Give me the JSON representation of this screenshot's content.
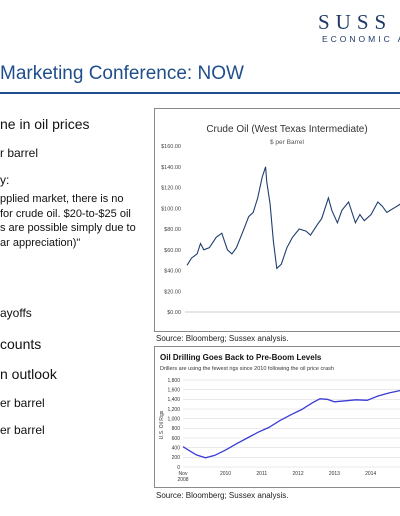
{
  "header": {
    "logo_main": "SUSS",
    "logo_sub": "ECONOMIC A",
    "title": "Marketing Conference: NOW"
  },
  "bullets": {
    "b1": "ne in oil prices",
    "b2": "r barrel",
    "b3": "y:",
    "quote": "pplied market, there is no\nfor crude oil. $20-to-$25 oil\ns are possible simply due to\nar appreciation)\"",
    "b4": "ayoffs",
    "b5": "counts",
    "b6": "n outlook",
    "b7": "er barrel",
    "b8": "er barrel"
  },
  "source1": "Source: Bloomberg; Sussex analysis.",
  "source2": "Source: Bloomberg; Sussex analysis.",
  "chart_data": [
    {
      "type": "line",
      "title": "Crude Oil (West Texas Intermediate)",
      "subtitle": "$ per Barrel",
      "ylim": [
        0,
        160
      ],
      "yticks": [
        "$0.00",
        "$20.00",
        "$40.00",
        "$60.00",
        "$80.00",
        "$100.00",
        "$120.00",
        "$140.00",
        "$160.00"
      ],
      "xlim": [
        2005.0,
        2014.8
      ],
      "grid": false,
      "color": "#1f3f6e",
      "x": [
        2005.0,
        2005.2,
        2005.45,
        2005.6,
        2005.75,
        2006.0,
        2006.3,
        2006.55,
        2006.8,
        2007.0,
        2007.2,
        2007.5,
        2007.75,
        2007.95,
        2008.15,
        2008.35,
        2008.5,
        2008.55,
        2008.7,
        2008.85,
        2009.0,
        2009.2,
        2009.45,
        2009.7,
        2010.0,
        2010.3,
        2010.5,
        2010.8,
        2011.0,
        2011.3,
        2011.45,
        2011.7,
        2011.9,
        2012.2,
        2012.5,
        2012.7,
        2012.9,
        2013.2,
        2013.5,
        2013.7,
        2013.9,
        2014.2,
        2014.5,
        2014.8
      ],
      "y": [
        45,
        52,
        56,
        66,
        60,
        62,
        72,
        76,
        60,
        56,
        62,
        78,
        92,
        96,
        110,
        130,
        140,
        126,
        104,
        68,
        42,
        46,
        62,
        72,
        80,
        78,
        74,
        84,
        90,
        110,
        98,
        86,
        98,
        106,
        86,
        94,
        88,
        94,
        106,
        102,
        96,
        100,
        104,
        98
      ]
    },
    {
      "type": "line",
      "title": "Oil Drilling Goes Back to Pre-Boom Levels",
      "subtitle": "Drillers are using the fewest rigs since 2010 following the oil price crash",
      "ylabel": "U.S. Oil Rigs",
      "ylim": [
        0,
        1800
      ],
      "yticks": [
        "0",
        "200",
        "400",
        "600",
        "800",
        "1,000",
        "1,200",
        "1,400",
        "1,600",
        "1,800"
      ],
      "xticks": [
        "Nov\n2008",
        "2010",
        "2011",
        "2012",
        "2013",
        "2014"
      ],
      "xlim": [
        2008.83,
        2015.0
      ],
      "grid": true,
      "color": "#3b3bd6",
      "x": [
        2008.83,
        2009.0,
        2009.2,
        2009.45,
        2009.7,
        2010.0,
        2010.3,
        2010.6,
        2010.9,
        2011.2,
        2011.5,
        2011.8,
        2012.1,
        2012.4,
        2012.6,
        2012.8,
        2013.0,
        2013.3,
        2013.6,
        2013.9,
        2014.2,
        2014.5,
        2014.8,
        2015.0
      ],
      "y": [
        420,
        340,
        250,
        190,
        240,
        350,
        480,
        600,
        720,
        820,
        960,
        1080,
        1190,
        1330,
        1410,
        1400,
        1350,
        1370,
        1390,
        1380,
        1470,
        1530,
        1580,
        1590
      ]
    }
  ]
}
